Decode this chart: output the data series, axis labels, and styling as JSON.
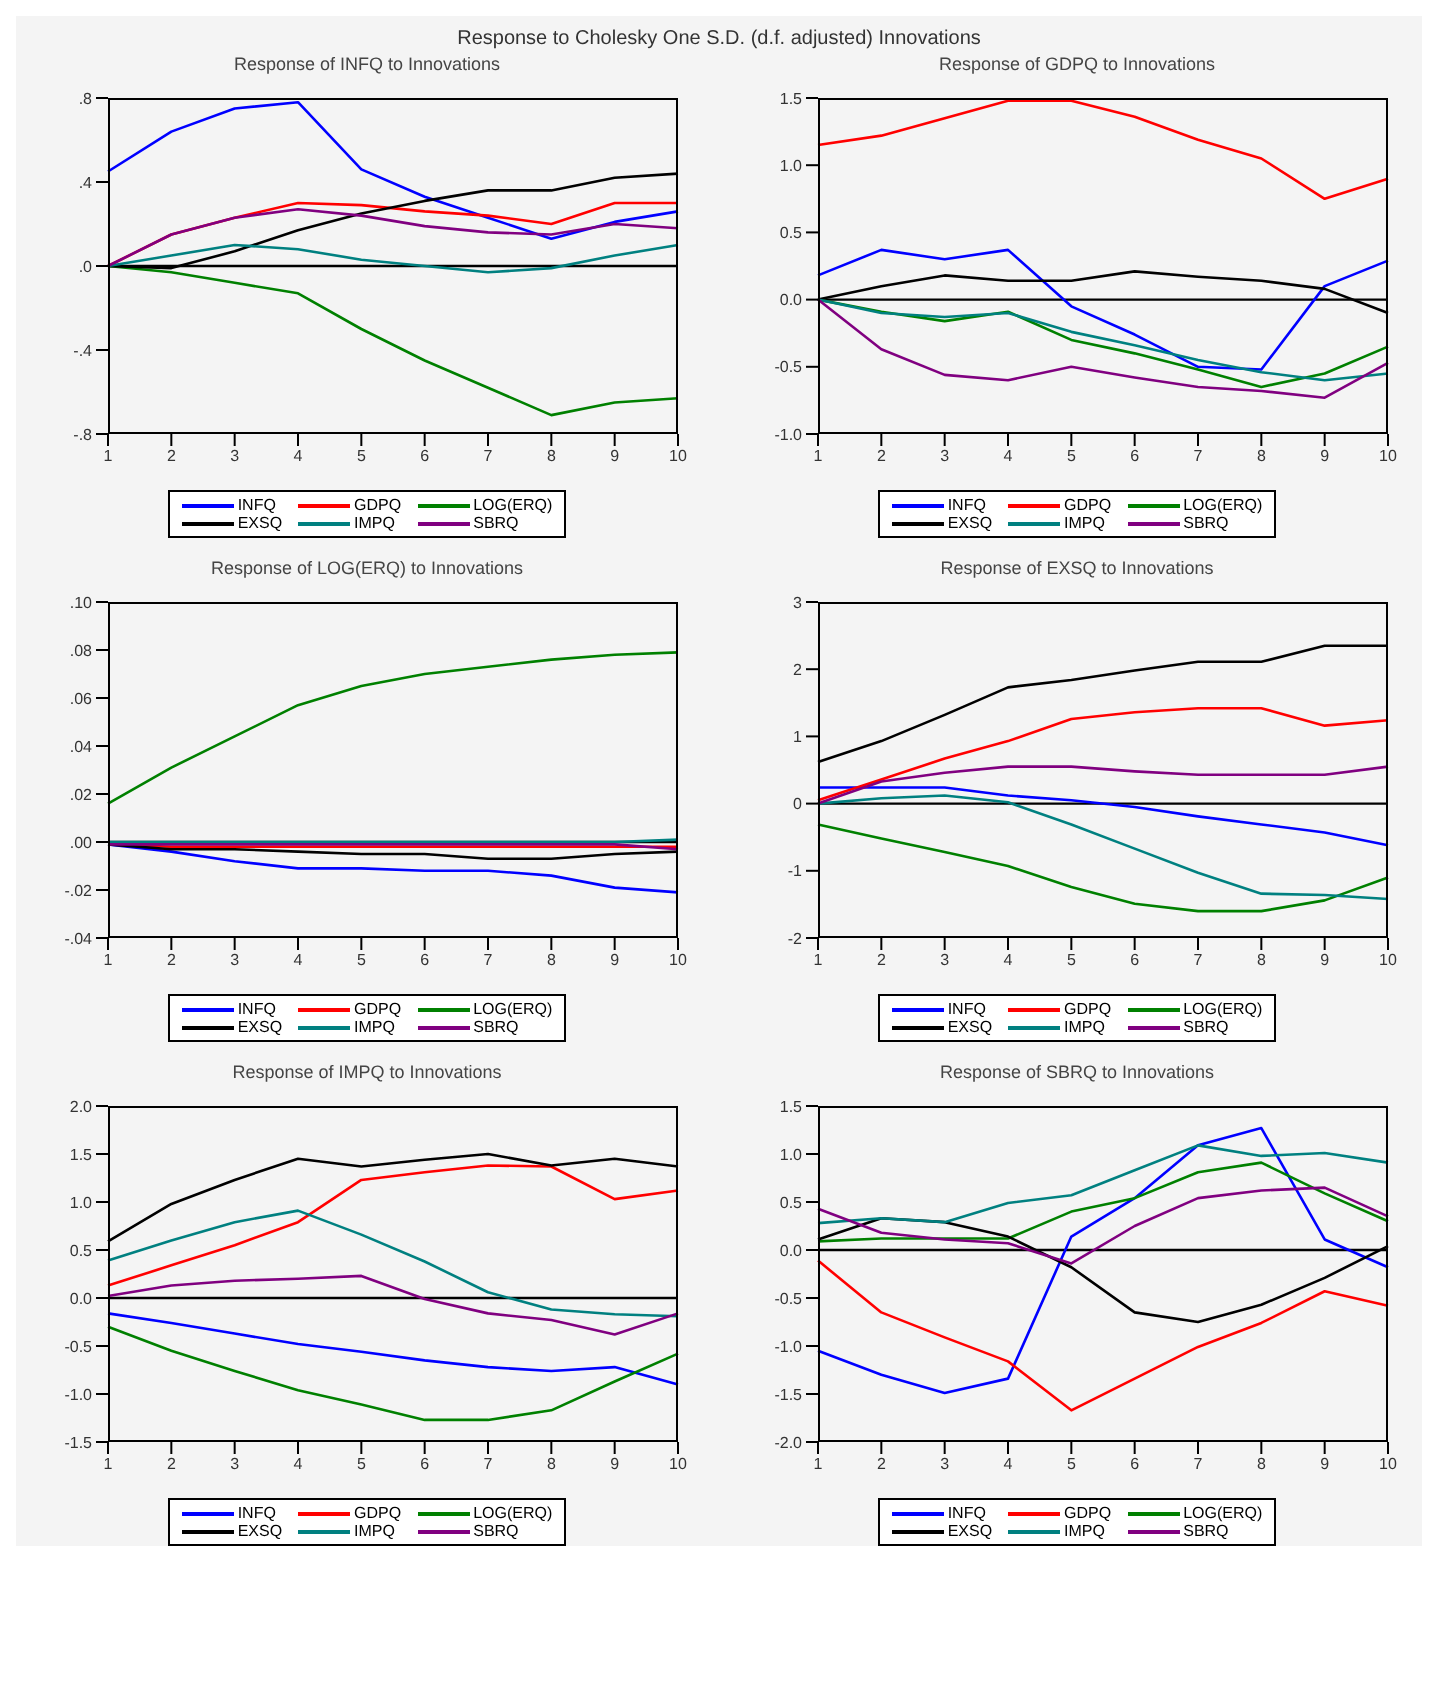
{
  "chart_data": [
    {
      "type": "line",
      "title": "Response of INFQ to Innovations",
      "annotations": [
        "Response to Cholesky One S.D. (d.f. adjusted) Innovations"
      ],
      "categories": [
        "1",
        "2",
        "3",
        "4",
        "5",
        "6",
        "7",
        "8",
        "9",
        "10"
      ],
      "ylim": [
        -0.8,
        0.8
      ],
      "yticks": [
        {
          "value": -0.8,
          "label": "-.8"
        },
        {
          "value": -0.4,
          "label": "-.4"
        },
        {
          "value": 0,
          "label": ".0"
        },
        {
          "value": 0.4,
          "label": ".4"
        },
        {
          "value": 0.8,
          "label": ".8"
        }
      ],
      "legend": "bottom",
      "ref_lines": [
        {
          "axis": "y",
          "value": 0,
          "color": "#000000"
        }
      ],
      "series": [
        {
          "name": "INFQ",
          "color": "#0000ff",
          "values": [
            0.45,
            0.64,
            0.75,
            0.78,
            0.46,
            0.33,
            0.23,
            0.13,
            0.21,
            0.26
          ]
        },
        {
          "name": "GDPQ",
          "color": "#ff0000",
          "values": [
            0,
            0.15,
            0.23,
            0.3,
            0.29,
            0.26,
            0.24,
            0.2,
            0.3,
            0.3
          ]
        },
        {
          "name": "LOG(ERQ)",
          "color": "#008000",
          "values": [
            0,
            -0.03,
            -0.08,
            -0.13,
            -0.3,
            -0.45,
            -0.58,
            -0.71,
            -0.65,
            -0.63
          ]
        },
        {
          "name": "EXSQ",
          "color": "#000000",
          "values": [
            0,
            -0.01,
            0.07,
            0.17,
            0.25,
            0.31,
            0.36,
            0.36,
            0.42,
            0.44
          ]
        },
        {
          "name": "IMPQ",
          "color": "#008080",
          "values": [
            0,
            0.05,
            0.1,
            0.08,
            0.03,
            0,
            -0.03,
            -0.01,
            0.05,
            0.1
          ]
        },
        {
          "name": "SBRQ",
          "color": "#800080",
          "values": [
            0,
            0.15,
            0.23,
            0.27,
            0.24,
            0.19,
            0.16,
            0.15,
            0.2,
            0.18
          ]
        }
      ]
    },
    {
      "type": "line",
      "title": "Response of GDPQ to Innovations",
      "categories": [
        "1",
        "2",
        "3",
        "4",
        "5",
        "6",
        "7",
        "8",
        "9",
        "10"
      ],
      "ylim": [
        -1,
        1.5
      ],
      "yticks": [
        {
          "value": -1,
          "label": "-1.0"
        },
        {
          "value": -0.5,
          "label": "-0.5"
        },
        {
          "value": 0,
          "label": "0.0"
        },
        {
          "value": 0.5,
          "label": "0.5"
        },
        {
          "value": 1,
          "label": "1.0"
        },
        {
          "value": 1.5,
          "label": "1.5"
        }
      ],
      "legend": "bottom",
      "ref_lines": [
        {
          "axis": "y",
          "value": 0,
          "color": "#000000"
        }
      ],
      "series": [
        {
          "name": "INFQ",
          "color": "#0000ff",
          "values": [
            0.18,
            0.37,
            0.3,
            0.37,
            -0.05,
            -0.26,
            -0.5,
            -0.52,
            0.1,
            0.29
          ]
        },
        {
          "name": "GDPQ",
          "color": "#ff0000",
          "values": [
            1.15,
            1.22,
            1.35,
            1.48,
            1.48,
            1.36,
            1.19,
            1.05,
            0.75,
            0.9
          ]
        },
        {
          "name": "LOG(ERQ)",
          "color": "#008000",
          "values": [
            0,
            -0.09,
            -0.16,
            -0.09,
            -0.3,
            -0.4,
            -0.52,
            -0.65,
            -0.55,
            -0.35
          ]
        },
        {
          "name": "EXSQ",
          "color": "#000000",
          "values": [
            0,
            0.1,
            0.18,
            0.14,
            0.14,
            0.21,
            0.17,
            0.14,
            0.08,
            -0.1
          ]
        },
        {
          "name": "IMPQ",
          "color": "#008080",
          "values": [
            0,
            -0.1,
            -0.13,
            -0.1,
            -0.24,
            -0.34,
            -0.45,
            -0.54,
            -0.6,
            -0.55
          ]
        },
        {
          "name": "SBRQ",
          "color": "#800080",
          "values": [
            0,
            -0.37,
            -0.56,
            -0.6,
            -0.5,
            -0.58,
            -0.65,
            -0.68,
            -0.73,
            -0.47
          ]
        }
      ]
    },
    {
      "type": "line",
      "title": "Response of LOG(ERQ) to Innovations",
      "categories": [
        "1",
        "2",
        "3",
        "4",
        "5",
        "6",
        "7",
        "8",
        "9",
        "10"
      ],
      "ylim": [
        -0.04,
        0.1
      ],
      "yticks": [
        {
          "value": -0.04,
          "label": "-.04"
        },
        {
          "value": -0.02,
          "label": "-.02"
        },
        {
          "value": 0,
          "label": ".00"
        },
        {
          "value": 0.02,
          "label": ".02"
        },
        {
          "value": 0.04,
          "label": ".04"
        },
        {
          "value": 0.06,
          "label": ".06"
        },
        {
          "value": 0.08,
          "label": ".08"
        },
        {
          "value": 0.1,
          "label": ".10"
        }
      ],
      "legend": "bottom",
      "ref_lines": [
        {
          "axis": "y",
          "value": 0,
          "color": "#000000"
        }
      ],
      "series": [
        {
          "name": "INFQ",
          "color": "#0000ff",
          "values": [
            -0.001,
            -0.004,
            -0.008,
            -0.011,
            -0.011,
            -0.012,
            -0.012,
            -0.014,
            -0.019,
            -0.021
          ]
        },
        {
          "name": "GDPQ",
          "color": "#ff0000",
          "values": [
            -0.001,
            -0.002,
            -0.002,
            -0.002,
            -0.002,
            -0.002,
            -0.002,
            -0.002,
            -0.002,
            -0.002
          ]
        },
        {
          "name": "LOG(ERQ)",
          "color": "#008000",
          "values": [
            0.016,
            0.031,
            0.044,
            0.057,
            0.065,
            0.07,
            0.073,
            0.076,
            0.078,
            0.079
          ]
        },
        {
          "name": "EXSQ",
          "color": "#000000",
          "values": [
            -0.001,
            -0.003,
            -0.003,
            -0.004,
            -0.005,
            -0.005,
            -0.007,
            -0.007,
            -0.005,
            -0.004
          ]
        },
        {
          "name": "IMPQ",
          "color": "#008080",
          "values": [
            0,
            0,
            0,
            0,
            0,
            0,
            0,
            0,
            0,
            0.001
          ]
        },
        {
          "name": "SBRQ",
          "color": "#800080",
          "values": [
            -0.001,
            -0.001,
            -0.001,
            -0.001,
            -0.001,
            -0.001,
            -0.001,
            -0.001,
            -0.001,
            -0.003
          ]
        }
      ]
    },
    {
      "type": "line",
      "title": "Response of EXSQ to Innovations",
      "categories": [
        "1",
        "2",
        "3",
        "4",
        "5",
        "6",
        "7",
        "8",
        "9",
        "10"
      ],
      "ylim": [
        -2,
        3
      ],
      "yticks": [
        -2,
        -1,
        0,
        1,
        2,
        3
      ],
      "legend": "bottom",
      "ref_lines": [
        {
          "axis": "y",
          "value": 0,
          "color": "#000000"
        }
      ],
      "series": [
        {
          "name": "INFQ",
          "color": "#0000ff",
          "values": [
            0.24,
            0.24,
            0.24,
            0.12,
            0.05,
            -0.05,
            -0.19,
            -0.31,
            -0.43,
            -0.62
          ]
        },
        {
          "name": "GDPQ",
          "color": "#ff0000",
          "values": [
            0.05,
            0.36,
            0.67,
            0.93,
            1.26,
            1.36,
            1.42,
            1.42,
            1.16,
            1.24
          ]
        },
        {
          "name": "LOG(ERQ)",
          "color": "#008000",
          "values": [
            -0.31,
            -0.52,
            -0.72,
            -0.93,
            -1.24,
            -1.49,
            -1.6,
            -1.6,
            -1.44,
            -1.1
          ]
        },
        {
          "name": "EXSQ",
          "color": "#000000",
          "values": [
            0.62,
            0.93,
            1.32,
            1.73,
            1.84,
            1.98,
            2.11,
            2.11,
            2.35,
            2.35
          ]
        },
        {
          "name": "IMPQ",
          "color": "#008080",
          "values": [
            0,
            0.08,
            0.12,
            0.02,
            -0.31,
            -0.67,
            -1.03,
            -1.34,
            -1.36,
            -1.42
          ]
        },
        {
          "name": "SBRQ",
          "color": "#800080",
          "values": [
            0,
            0.33,
            0.46,
            0.55,
            0.55,
            0.48,
            0.43,
            0.43,
            0.43,
            0.55
          ]
        }
      ]
    },
    {
      "type": "line",
      "title": "Response of IMPQ to Innovations",
      "categories": [
        "1",
        "2",
        "3",
        "4",
        "5",
        "6",
        "7",
        "8",
        "9",
        "10"
      ],
      "ylim": [
        -1.5,
        2
      ],
      "yticks": [
        {
          "value": -1.5,
          "label": "-1.5"
        },
        {
          "value": -1,
          "label": "-1.0"
        },
        {
          "value": -0.5,
          "label": "-0.5"
        },
        {
          "value": 0,
          "label": "0.0"
        },
        {
          "value": 0.5,
          "label": "0.5"
        },
        {
          "value": 1,
          "label": "1.0"
        },
        {
          "value": 1.5,
          "label": "1.5"
        },
        {
          "value": 2,
          "label": "2.0"
        }
      ],
      "legend": "bottom",
      "ref_lines": [
        {
          "axis": "y",
          "value": 0,
          "color": "#000000"
        }
      ],
      "series": [
        {
          "name": "INFQ",
          "color": "#0000ff",
          "values": [
            -0.16,
            -0.26,
            -0.37,
            -0.48,
            -0.56,
            -0.65,
            -0.72,
            -0.76,
            -0.72,
            -0.9
          ]
        },
        {
          "name": "GDPQ",
          "color": "#ff0000",
          "values": [
            0.13,
            0.34,
            0.55,
            0.79,
            1.23,
            1.31,
            1.38,
            1.37,
            1.03,
            1.12
          ]
        },
        {
          "name": "LOG(ERQ)",
          "color": "#008000",
          "values": [
            -0.3,
            -0.55,
            -0.76,
            -0.96,
            -1.11,
            -1.27,
            -1.27,
            -1.17,
            -0.87,
            -0.58
          ]
        },
        {
          "name": "EXSQ",
          "color": "#000000",
          "values": [
            0.59,
            0.98,
            1.23,
            1.45,
            1.37,
            1.44,
            1.5,
            1.38,
            1.45,
            1.37
          ]
        },
        {
          "name": "IMPQ",
          "color": "#008080",
          "values": [
            0.39,
            0.6,
            0.79,
            0.91,
            0.66,
            0.38,
            0.06,
            -0.12,
            -0.17,
            -0.19
          ]
        },
        {
          "name": "SBRQ",
          "color": "#800080",
          "values": [
            0.02,
            0.13,
            0.18,
            0.2,
            0.23,
            -0.01,
            -0.16,
            -0.23,
            -0.38,
            -0.16
          ]
        }
      ]
    },
    {
      "type": "line",
      "title": "Response of SBRQ to Innovations",
      "categories": [
        "1",
        "2",
        "3",
        "4",
        "5",
        "6",
        "7",
        "8",
        "9",
        "10"
      ],
      "ylim": [
        -2,
        1.5
      ],
      "yticks": [
        {
          "value": -2,
          "label": "-2.0"
        },
        {
          "value": -1.5,
          "label": "-1.5"
        },
        {
          "value": -1,
          "label": "-1.0"
        },
        {
          "value": -0.5,
          "label": "-0.5"
        },
        {
          "value": 0,
          "label": "0.0"
        },
        {
          "value": 0.5,
          "label": "0.5"
        },
        {
          "value": 1,
          "label": "1.0"
        },
        {
          "value": 1.5,
          "label": "1.5"
        }
      ],
      "legend": "bottom",
      "ref_lines": [
        {
          "axis": "y",
          "value": 0,
          "color": "#000000"
        }
      ],
      "series": [
        {
          "name": "INFQ",
          "color": "#0000ff",
          "values": [
            -1.05,
            -1.3,
            -1.49,
            -1.34,
            0.14,
            0.54,
            1.09,
            1.27,
            0.11,
            -0.18
          ]
        },
        {
          "name": "GDPQ",
          "color": "#ff0000",
          "values": [
            -0.11,
            -0.65,
            -0.91,
            -1.16,
            -1.67,
            -1.34,
            -1.01,
            -0.76,
            -0.43,
            -0.58
          ]
        },
        {
          "name": "LOG(ERQ)",
          "color": "#008000",
          "values": [
            0.09,
            0.12,
            0.12,
            0.12,
            0.4,
            0.54,
            0.81,
            0.91,
            0.59,
            0.3
          ]
        },
        {
          "name": "EXSQ",
          "color": "#000000",
          "values": [
            0.11,
            0.33,
            0.29,
            0.14,
            -0.18,
            -0.65,
            -0.75,
            -0.57,
            -0.29,
            0.04
          ]
        },
        {
          "name": "IMPQ",
          "color": "#008080",
          "values": [
            0.28,
            0.33,
            0.29,
            0.49,
            0.57,
            0.83,
            1.09,
            0.98,
            1.01,
            0.91
          ]
        },
        {
          "name": "SBRQ",
          "color": "#800080",
          "values": [
            0.43,
            0.18,
            0.11,
            0.07,
            -0.14,
            0.25,
            0.54,
            0.62,
            0.65,
            0.35
          ]
        }
      ]
    }
  ]
}
